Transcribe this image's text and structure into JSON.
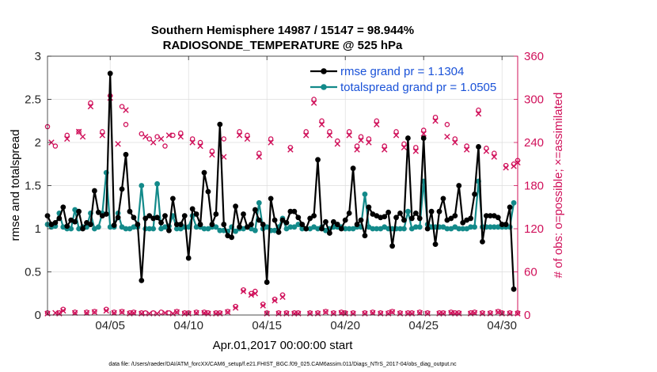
{
  "chart_data": {
    "type": "line",
    "title_line1": "Southern Hemisphere 14987 / 15147 = 98.944%",
    "title_line2": "RADIOSONDE_TEMPERATURE @ 525 hPa",
    "xlabel": "Apr.01,2017 00:00:00 start",
    "ylabel_left": "rmse and totalspread",
    "ylabel_right": "# of obs: o=possible; ×=assimilated",
    "footnote": "data file: /Users/raeder/DAI/ATM_forcXX/CAM6_setup/f.e21.FHIST_BGC.f09_025.CAM6assim.011/Diags_NTrS_2017-04/obs_diag_output.nc",
    "xlim": [
      1.0,
      31.0
    ],
    "xticks": [
      5,
      10,
      15,
      20,
      25,
      30
    ],
    "xtick_labels": [
      "04/05",
      "04/10",
      "04/15",
      "04/20",
      "04/25",
      "04/30"
    ],
    "ylim_left": [
      0,
      3
    ],
    "yticks_left": [
      0,
      0.5,
      1,
      1.5,
      2,
      2.5,
      3
    ],
    "ytick_labels_left": [
      "0",
      "0.5",
      "1",
      "1.5",
      "2",
      "2.5",
      "3"
    ],
    "ylim_right": [
      0,
      360
    ],
    "yticks_right": [
      0,
      60,
      120,
      180,
      240,
      300,
      360
    ],
    "ytick_labels_right": [
      "0",
      "60",
      "120",
      "180",
      "240",
      "300",
      "360"
    ],
    "colors": {
      "rmse": "#000000",
      "spread": "#138a8a",
      "obs": "#d0105a",
      "legend_text": "#1a52d8",
      "right_axis": "#d0105a"
    },
    "x": [
      1.0,
      1.25,
      1.5,
      1.75,
      2.0,
      2.25,
      2.5,
      2.75,
      3.0,
      3.25,
      3.5,
      3.75,
      4.0,
      4.25,
      4.5,
      4.75,
      5.0,
      5.25,
      5.5,
      5.75,
      6.0,
      6.25,
      6.5,
      6.75,
      7.0,
      7.25,
      7.5,
      7.75,
      8.0,
      8.25,
      8.5,
      8.75,
      9.0,
      9.25,
      9.5,
      9.75,
      10.0,
      10.25,
      10.5,
      10.75,
      11.0,
      11.25,
      11.5,
      11.75,
      12.0,
      12.25,
      12.5,
      12.75,
      13.0,
      13.25,
      13.5,
      13.75,
      14.0,
      14.25,
      14.5,
      14.75,
      15.0,
      15.25,
      15.5,
      15.75,
      16.0,
      16.25,
      16.5,
      16.75,
      17.0,
      17.25,
      17.5,
      17.75,
      18.0,
      18.25,
      18.5,
      18.75,
      19.0,
      19.25,
      19.5,
      19.75,
      20.0,
      20.25,
      20.5,
      20.75,
      21.0,
      21.25,
      21.5,
      21.75,
      22.0,
      22.25,
      22.5,
      22.75,
      23.0,
      23.25,
      23.5,
      23.75,
      24.0,
      24.25,
      24.5,
      24.75,
      25.0,
      25.25,
      25.5,
      25.75,
      26.0,
      26.25,
      26.5,
      26.75,
      27.0,
      27.25,
      27.5,
      27.75,
      28.0,
      28.25,
      28.5,
      28.75,
      29.0,
      29.25,
      29.5,
      29.75,
      30.0,
      30.25,
      30.5,
      30.75
    ],
    "series": [
      {
        "name": "rmse grand pr = 1.1304",
        "values": [
          1.15,
          1.05,
          1.07,
          1.12,
          1.25,
          1.03,
          1.1,
          1.08,
          1.2,
          1.0,
          1.07,
          1.05,
          1.44,
          1.19,
          1.15,
          1.17,
          2.8,
          1.04,
          1.13,
          1.46,
          1.86,
          1.2,
          1.13,
          1.05,
          0.4,
          1.12,
          1.15,
          1.12,
          1.13,
          1.07,
          1.15,
          0.98,
          1.35,
          1.05,
          1.05,
          1.15,
          0.66,
          1.23,
          1.17,
          1.05,
          1.65,
          1.43,
          1.05,
          1.17,
          2.21,
          1.05,
          0.92,
          0.9,
          1.26,
          1.02,
          1.17,
          1.02,
          1.05,
          1.22,
          1.1,
          1.05,
          0.38,
          1.35,
          1.1,
          0.96,
          1.1,
          1.07,
          1.2,
          1.2,
          1.13,
          1.05,
          1.0,
          1.12,
          1.15,
          1.8,
          1.0,
          1.08,
          0.95,
          1.08,
          1.05,
          1.0,
          1.1,
          1.18,
          1.7,
          1.05,
          1.1,
          0.92,
          1.25,
          1.17,
          1.15,
          1.13,
          1.14,
          1.19,
          0.8,
          1.13,
          1.18,
          1.1,
          2.05,
          1.12,
          1.18,
          1.12,
          2.05,
          1.0,
          1.2,
          0.82,
          1.2,
          1.35,
          1.1,
          1.12,
          1.15,
          1.5,
          1.07,
          1.1,
          1.12,
          1.4,
          1.95,
          0.85,
          1.15,
          1.15,
          1.15,
          1.13,
          1.05,
          1.05,
          1.25,
          0.3
        ]
      },
      {
        "name": "totalspread grand pr = 1.0505",
        "values": [
          1.05,
          1.02,
          1.03,
          1.18,
          1.02,
          1.0,
          1.0,
          1.22,
          1.0,
          1.02,
          1.02,
          1.18,
          1.0,
          1.02,
          1.18,
          1.65,
          1.02,
          1.02,
          1.18,
          1.02,
          1.0,
          1.0,
          1.02,
          1.02,
          1.5,
          1.0,
          1.0,
          1.0,
          1.52,
          1.0,
          1.02,
          1.03,
          1.15,
          1.0,
          1.0,
          1.02,
          1.02,
          1.15,
          1.02,
          1.02,
          1.0,
          1.0,
          1.02,
          1.02,
          0.98,
          0.98,
          0.97,
          1.02,
          0.97,
          1.0,
          1.0,
          1.02,
          1.0,
          0.98,
          1.3,
          1.0,
          1.02,
          0.98,
          0.98,
          1.02,
          1.12,
          1.0,
          1.02,
          1.02,
          1.05,
          1.0,
          1.0,
          1.0,
          1.02,
          1.0,
          1.02,
          0.98,
          1.0,
          1.02,
          1.02,
          1.02,
          1.0,
          1.0,
          1.0,
          1.02,
          1.02,
          1.4,
          1.02,
          1.0,
          1.0,
          1.0,
          1.02,
          1.0,
          1.0,
          1.0,
          1.0,
          1.0,
          1.2,
          1.0,
          1.02,
          1.02,
          1.55,
          1.05,
          1.02,
          1.02,
          1.02,
          1.02,
          1.0,
          1.0,
          1.02,
          1.0,
          1.0,
          1.0,
          1.02,
          1.02,
          1.55,
          1.02,
          1.02,
          1.02,
          1.02,
          1.02,
          1.02,
          1.02,
          1.02,
          1.3
        ]
      }
    ],
    "obs_possible": [
      [
        1.0,
        3
      ],
      [
        1.0,
        262
      ],
      [
        1.5,
        235
      ],
      [
        1.75,
        3
      ],
      [
        2.0,
        8
      ],
      [
        2.25,
        250
      ],
      [
        2.75,
        4
      ],
      [
        3.0,
        255
      ],
      [
        3.5,
        4
      ],
      [
        3.75,
        295
      ],
      [
        4.0,
        5
      ],
      [
        4.5,
        255
      ],
      [
        4.75,
        8
      ],
      [
        5.0,
        305
      ],
      [
        5.25,
        4
      ],
      [
        5.75,
        5
      ],
      [
        5.75,
        290
      ],
      [
        6.0,
        265
      ],
      [
        6.25,
        3
      ],
      [
        6.5,
        4
      ],
      [
        7.0,
        3
      ],
      [
        7.0,
        252
      ],
      [
        7.25,
        3
      ],
      [
        7.5,
        245
      ],
      [
        7.75,
        3
      ],
      [
        8.0,
        248
      ],
      [
        8.25,
        4
      ],
      [
        8.5,
        235
      ],
      [
        8.75,
        3
      ],
      [
        9.0,
        250
      ],
      [
        9.25,
        5
      ],
      [
        9.5,
        253
      ],
      [
        9.75,
        3
      ],
      [
        10.0,
        3
      ],
      [
        10.25,
        245
      ],
      [
        10.5,
        4
      ],
      [
        10.75,
        240
      ],
      [
        11.0,
        4
      ],
      [
        11.25,
        3
      ],
      [
        11.5,
        228
      ],
      [
        11.75,
        3
      ],
      [
        12.0,
        3
      ],
      [
        12.25,
        245
      ],
      [
        12.5,
        5
      ],
      [
        13.0,
        12
      ],
      [
        13.25,
        255
      ],
      [
        13.5,
        35
      ],
      [
        13.75,
        250
      ],
      [
        14.0,
        30
      ],
      [
        14.25,
        33
      ],
      [
        14.5,
        225
      ],
      [
        14.75,
        15
      ],
      [
        15.0,
        3
      ],
      [
        15.25,
        245
      ],
      [
        15.5,
        22
      ],
      [
        15.75,
        3
      ],
      [
        16.0,
        28
      ],
      [
        16.25,
        3
      ],
      [
        16.5,
        233
      ],
      [
        16.75,
        3
      ],
      [
        17.0,
        3
      ],
      [
        17.5,
        255
      ],
      [
        17.75,
        3
      ],
      [
        18.0,
        300
      ],
      [
        18.25,
        3
      ],
      [
        18.5,
        270
      ],
      [
        18.75,
        5
      ],
      [
        19.0,
        255
      ],
      [
        19.25,
        3
      ],
      [
        19.5,
        242
      ],
      [
        19.75,
        4
      ],
      [
        20.0,
        3
      ],
      [
        20.25,
        255
      ],
      [
        20.5,
        3
      ],
      [
        20.75,
        235
      ],
      [
        21.0,
        248
      ],
      [
        21.25,
        3
      ],
      [
        21.5,
        245
      ],
      [
        21.75,
        4
      ],
      [
        22.0,
        270
      ],
      [
        22.25,
        3
      ],
      [
        22.5,
        235
      ],
      [
        22.75,
        3
      ],
      [
        23.0,
        5
      ],
      [
        23.25,
        255
      ],
      [
        23.5,
        3
      ],
      [
        23.75,
        238
      ],
      [
        24.0,
        3
      ],
      [
        24.25,
        3
      ],
      [
        24.5,
        233
      ],
      [
        24.75,
        4
      ],
      [
        25.0,
        257
      ],
      [
        25.25,
        3
      ],
      [
        25.75,
        275
      ],
      [
        26.0,
        3
      ],
      [
        26.25,
        3
      ],
      [
        26.5,
        265
      ],
      [
        26.75,
        4
      ],
      [
        27.0,
        3
      ],
      [
        27.0,
        245
      ],
      [
        27.25,
        3
      ],
      [
        27.75,
        235
      ],
      [
        28.0,
        3
      ],
      [
        28.25,
        4
      ],
      [
        28.5,
        285
      ],
      [
        28.75,
        3
      ],
      [
        29.0,
        232
      ],
      [
        29.25,
        3
      ],
      [
        29.5,
        225
      ],
      [
        29.75,
        5
      ],
      [
        30.0,
        3
      ],
      [
        30.25,
        208
      ],
      [
        30.5,
        3
      ],
      [
        30.75,
        210
      ],
      [
        31.0,
        215
      ],
      [
        31.0,
        3
      ]
    ],
    "obs_assimilated": [
      [
        1.0,
        2
      ],
      [
        1.25,
        240
      ],
      [
        1.5,
        3
      ],
      [
        1.75,
        2
      ],
      [
        2.0,
        6
      ],
      [
        2.25,
        245
      ],
      [
        2.75,
        3
      ],
      [
        3.0,
        255
      ],
      [
        3.25,
        248
      ],
      [
        3.5,
        3
      ],
      [
        3.75,
        290
      ],
      [
        4.0,
        4
      ],
      [
        4.5,
        250
      ],
      [
        4.75,
        6
      ],
      [
        5.0,
        302
      ],
      [
        5.25,
        3
      ],
      [
        5.5,
        238
      ],
      [
        5.75,
        4
      ],
      [
        6.0,
        285
      ],
      [
        6.25,
        2
      ],
      [
        6.5,
        3
      ],
      [
        7.0,
        2
      ],
      [
        7.25,
        248
      ],
      [
        7.5,
        2
      ],
      [
        7.75,
        240
      ],
      [
        8.0,
        2
      ],
      [
        8.25,
        245
      ],
      [
        8.5,
        3
      ],
      [
        8.75,
        250
      ],
      [
        9.0,
        2
      ],
      [
        9.25,
        4
      ],
      [
        9.5,
        248
      ],
      [
        9.75,
        2
      ],
      [
        10.0,
        2
      ],
      [
        10.25,
        240
      ],
      [
        10.5,
        3
      ],
      [
        10.75,
        235
      ],
      [
        11.0,
        3
      ],
      [
        11.25,
        2
      ],
      [
        11.5,
        223
      ],
      [
        11.75,
        2
      ],
      [
        12.0,
        2
      ],
      [
        12.25,
        220
      ],
      [
        12.5,
        4
      ],
      [
        13.0,
        10
      ],
      [
        13.25,
        250
      ],
      [
        13.5,
        33
      ],
      [
        13.75,
        245
      ],
      [
        14.0,
        28
      ],
      [
        14.25,
        30
      ],
      [
        14.5,
        220
      ],
      [
        14.75,
        13
      ],
      [
        15.0,
        2
      ],
      [
        15.25,
        240
      ],
      [
        15.5,
        20
      ],
      [
        15.75,
        2
      ],
      [
        16.0,
        25
      ],
      [
        16.25,
        2
      ],
      [
        16.5,
        230
      ],
      [
        16.75,
        2
      ],
      [
        17.0,
        2
      ],
      [
        17.5,
        250
      ],
      [
        17.75,
        2
      ],
      [
        18.0,
        295
      ],
      [
        18.25,
        2
      ],
      [
        18.5,
        265
      ],
      [
        18.75,
        4
      ],
      [
        19.0,
        250
      ],
      [
        19.25,
        2
      ],
      [
        19.5,
        238
      ],
      [
        19.75,
        3
      ],
      [
        20.0,
        2
      ],
      [
        20.25,
        250
      ],
      [
        20.5,
        2
      ],
      [
        20.75,
        230
      ],
      [
        21.0,
        243
      ],
      [
        21.25,
        2
      ],
      [
        21.5,
        240
      ],
      [
        21.75,
        3
      ],
      [
        22.0,
        265
      ],
      [
        22.25,
        2
      ],
      [
        22.5,
        230
      ],
      [
        22.75,
        2
      ],
      [
        23.0,
        4
      ],
      [
        23.25,
        250
      ],
      [
        23.5,
        2
      ],
      [
        23.75,
        233
      ],
      [
        24.0,
        2
      ],
      [
        24.25,
        2
      ],
      [
        24.5,
        228
      ],
      [
        24.75,
        3
      ],
      [
        25.0,
        252
      ],
      [
        25.25,
        2
      ],
      [
        25.75,
        270
      ],
      [
        26.0,
        2
      ],
      [
        26.25,
        2
      ],
      [
        26.5,
        248
      ],
      [
        26.75,
        3
      ],
      [
        27.0,
        2
      ],
      [
        27.0,
        240
      ],
      [
        27.25,
        2
      ],
      [
        27.75,
        230
      ],
      [
        28.0,
        2
      ],
      [
        28.25,
        3
      ],
      [
        28.5,
        280
      ],
      [
        28.75,
        2
      ],
      [
        29.0,
        228
      ],
      [
        29.25,
        2
      ],
      [
        29.5,
        220
      ],
      [
        29.75,
        4
      ],
      [
        30.0,
        2
      ],
      [
        30.25,
        205
      ],
      [
        30.5,
        2
      ],
      [
        30.75,
        207
      ],
      [
        31.0,
        212
      ],
      [
        31.0,
        2
      ]
    ]
  }
}
